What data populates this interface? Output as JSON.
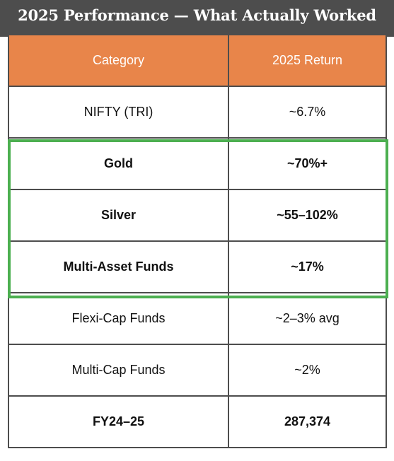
{
  "title": "2025 Performance — What Actually Worked",
  "table": {
    "headers": [
      "Category",
      "2025 Return"
    ],
    "rows": [
      {
        "category": "NIFTY (TRI)",
        "return": "~6.7%"
      },
      {
        "category": "Gold",
        "return": "~70%+"
      },
      {
        "category": "Silver",
        "return": "~55–102%"
      },
      {
        "category": "Multi-Asset Funds",
        "return": "~17%"
      },
      {
        "category": "Flexi-Cap Funds",
        "return": "~2–3% avg"
      },
      {
        "category": "Multi-Cap Funds",
        "return": "~2%"
      },
      {
        "category": "FY24–25",
        "return": "287,374"
      }
    ]
  },
  "colors": {
    "title_background": "#4d4d4d",
    "header_background": "#e8854a",
    "highlight_border": "#4caf50"
  }
}
